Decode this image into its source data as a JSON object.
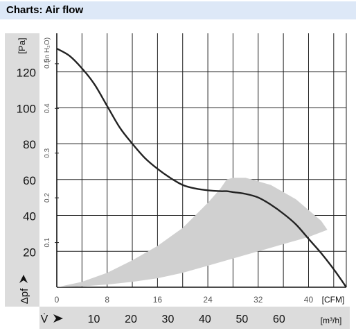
{
  "header": {
    "title": "Charts: Air flow"
  },
  "chart_data": {
    "type": "line",
    "title": "",
    "y_pa_label": "[Pa]",
    "y_inh2o_label": "(in H₂O)",
    "delta_p_label": "Δpf",
    "x_cfm_label": "[CFM]",
    "x_m3h_label": "[m³/h]",
    "v_label": "V̇",
    "grid": true,
    "xlim_cfm": [
      0,
      46
    ],
    "ylim_pa": [
      0,
      133
    ],
    "y_ticks_pa": [
      "20",
      "40",
      "60",
      "80",
      "100",
      "120"
    ],
    "y_ticks_pa_values": [
      20,
      40,
      60,
      80,
      100,
      120
    ],
    "y_ticks_inh2o": [
      "0.1",
      "0.2",
      "0.3",
      "0.4",
      "0.5"
    ],
    "y_ticks_inh2o_values": [
      0.1,
      0.2,
      0.3,
      0.4,
      0.5
    ],
    "x_ticks_cfm": [
      "0",
      "8",
      "16",
      "24",
      "32",
      "40"
    ],
    "x_ticks_cfm_values": [
      0,
      8,
      16,
      24,
      32,
      40
    ],
    "x_ticks_m3h": [
      "10",
      "20",
      "30",
      "40",
      "50",
      "60"
    ],
    "x_ticks_m3h_values": [
      10,
      20,
      30,
      40,
      50,
      60
    ],
    "series": [
      {
        "x": [
          0,
          2,
          4,
          6,
          8,
          10,
          12,
          14,
          16,
          18,
          20,
          22,
          24,
          26,
          27,
          28,
          30,
          32,
          34,
          36,
          38,
          40,
          42,
          44,
          46
        ],
        "y": [
          133,
          129,
          122,
          113,
          101,
          89,
          80,
          72,
          66,
          61,
          57,
          55,
          54,
          53.5,
          53.5,
          53,
          52,
          50,
          46,
          41,
          35,
          27,
          19,
          10,
          0
        ],
        "color": "#222222"
      }
    ],
    "operating_range": {
      "color": "#d0d0d0",
      "upper_x": [
        0,
        4,
        8,
        12,
        16,
        20,
        24,
        26,
        27,
        28,
        30,
        34,
        38,
        42,
        43
      ],
      "upper_y": [
        0,
        3,
        8,
        15,
        23,
        33,
        47,
        55,
        60,
        61,
        61,
        57,
        49,
        37,
        32
      ],
      "lower_x": [
        43,
        40,
        36,
        32,
        28,
        24,
        20,
        16,
        12,
        8,
        4,
        0
      ],
      "lower_y": [
        32,
        28,
        24,
        20,
        16,
        12,
        8,
        5,
        3,
        1.5,
        0.5,
        0
      ]
    }
  }
}
